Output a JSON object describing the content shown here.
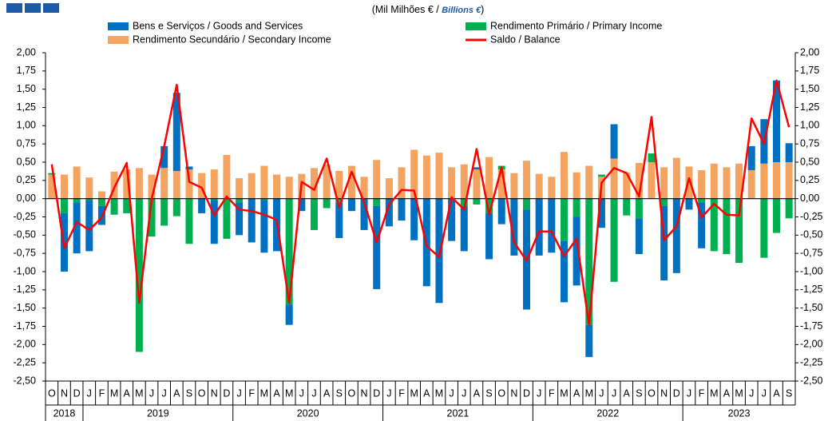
{
  "chart_data": {
    "type": "bar",
    "title_parts": [
      "(Mil Milhões € / ",
      "Billions €",
      ")"
    ],
    "categories": [
      "O",
      "N",
      "D",
      "J",
      "F",
      "M",
      "A",
      "M",
      "J",
      "J",
      "A",
      "S",
      "O",
      "N",
      "D",
      "J",
      "F",
      "M",
      "A",
      "M",
      "J",
      "J",
      "A",
      "S",
      "O",
      "N",
      "D",
      "J",
      "F",
      "M",
      "A",
      "M",
      "J",
      "J",
      "A",
      "S",
      "O",
      "N",
      "D",
      "J",
      "F",
      "M",
      "A",
      "M",
      "J",
      "J",
      "A",
      "S",
      "O",
      "N",
      "D",
      "J",
      "F",
      "M",
      "A",
      "M",
      "J",
      "J",
      "A",
      "S"
    ],
    "years": [
      "2018",
      "2019",
      "2020",
      "2021",
      "2022",
      "2023"
    ],
    "series": [
      {
        "name": "Bens e Serviços / Goods and Services",
        "color": "#0070c0",
        "values": [
          0,
          -0.8,
          -0.7,
          -0.7,
          -0.26,
          0,
          0,
          0,
          0,
          0.3,
          1.07,
          0.04,
          -0.2,
          -0.6,
          0,
          -0.45,
          -0.6,
          -0.72,
          -0.72,
          -0.28,
          -0.17,
          0,
          0,
          -0.49,
          -0.17,
          -0.43,
          -1.14,
          -0.38,
          -0.3,
          -0.57,
          -1.2,
          -1.43,
          -0.58,
          -0.62,
          0.03,
          -0.63,
          -0.35,
          -0.78,
          -1.37,
          -0.78,
          -0.74,
          -0.84,
          -0.94,
          -0.44,
          -0.4,
          0.47,
          0,
          -0.49,
          0,
          -1.02,
          -1.02,
          -0.15,
          -0.63,
          0,
          0,
          0,
          0.33,
          0.61,
          1.12,
          0.26
        ]
      },
      {
        "name": "Rendimento Primário / Primary Income",
        "color": "#00b050",
        "values": [
          0.02,
          -0.2,
          -0.05,
          -0.02,
          -0.1,
          -0.22,
          -0.2,
          -2.1,
          -0.52,
          -0.37,
          -0.24,
          -0.62,
          0,
          -0.02,
          -0.55,
          -0.05,
          0,
          -0.02,
          0,
          -1.45,
          0,
          -0.43,
          -0.13,
          -0.05,
          0,
          0,
          -0.1,
          0,
          0,
          0,
          0,
          0,
          0,
          -0.1,
          -0.08,
          -0.2,
          0.05,
          0,
          -0.15,
          0,
          0,
          -0.58,
          -0.25,
          -1.73,
          0.03,
          -1.14,
          -0.23,
          -0.27,
          0.12,
          -0.1,
          0,
          0,
          -0.05,
          -0.72,
          -0.76,
          -0.88,
          0,
          -0.81,
          -0.47,
          -0.27
        ]
      },
      {
        "name": "Rendimento Secundário / Secondary Income",
        "color": "#f4a460",
        "values": [
          0.33,
          0.33,
          0.44,
          0.29,
          0.1,
          0.37,
          0.4,
          0.42,
          0.33,
          0.42,
          0.38,
          0.4,
          0.35,
          0.4,
          0.6,
          0.28,
          0.35,
          0.45,
          0.33,
          0.3,
          0.34,
          0.42,
          0.47,
          0.38,
          0.45,
          0.3,
          0.53,
          0.28,
          0.43,
          0.67,
          0.59,
          0.63,
          0.43,
          0.47,
          0.4,
          0.57,
          0.4,
          0.35,
          0.52,
          0.34,
          0.3,
          0.64,
          0.36,
          0.45,
          0.3,
          0.55,
          0.36,
          0.49,
          0.5,
          0.43,
          0.56,
          0.44,
          0.39,
          0.48,
          0.43,
          0.48,
          0.39,
          0.48,
          0.5,
          0.5
        ]
      },
      {
        "name": "Saldo / Balance",
        "type": "line",
        "color": "#ff0000",
        "values": [
          0.47,
          -0.68,
          -0.32,
          -0.43,
          -0.26,
          0.15,
          0.49,
          -1.43,
          0,
          0.72,
          1.56,
          0.23,
          0.15,
          -0.23,
          0.03,
          -0.15,
          -0.17,
          -0.22,
          -0.29,
          -1.43,
          0.23,
          0.12,
          0.55,
          -0.12,
          0.37,
          -0.05,
          -0.6,
          -0.08,
          0.12,
          0.11,
          -0.65,
          -0.8,
          0.02,
          -0.15,
          0.68,
          -0.22,
          0.43,
          -0.6,
          -0.85,
          -0.45,
          -0.45,
          -0.79,
          -0.55,
          -1.73,
          0.22,
          0.42,
          0.35,
          0.03,
          1.12,
          -0.57,
          -0.38,
          0.28,
          -0.26,
          -0.07,
          -0.22,
          -0.23,
          1.1,
          0.75,
          1.62,
          0.98
        ]
      }
    ],
    "ylim": [
      -2.5,
      2
    ],
    "yticks": [
      {
        "value": -2.5,
        "label": "-2,50"
      },
      {
        "value": -2.25,
        "label": "-2,25"
      },
      {
        "value": -2,
        "label": "-2,00"
      },
      {
        "value": -1.75,
        "label": "-1,75"
      },
      {
        "value": -1.5,
        "label": "-1,50"
      },
      {
        "value": -1.25,
        "label": "-1,25"
      },
      {
        "value": -1,
        "label": "-1,00"
      },
      {
        "value": -0.75,
        "label": "-0,75"
      },
      {
        "value": -0.5,
        "label": "-0,50"
      },
      {
        "value": -0.25,
        "label": "-0,25"
      },
      {
        "value": 0,
        "label": "0,00"
      },
      {
        "value": 0.25,
        "label": "0,25"
      },
      {
        "value": 0.5,
        "label": "0,50"
      },
      {
        "value": 0.75,
        "label": "0,75"
      },
      {
        "value": 1,
        "label": "1,00"
      },
      {
        "value": 1.25,
        "label": "1,25"
      },
      {
        "value": 1.5,
        "label": "1,50"
      },
      {
        "value": 1.75,
        "label": "1,75"
      },
      {
        "value": 2,
        "label": "2,00"
      }
    ],
    "grid": false
  }
}
